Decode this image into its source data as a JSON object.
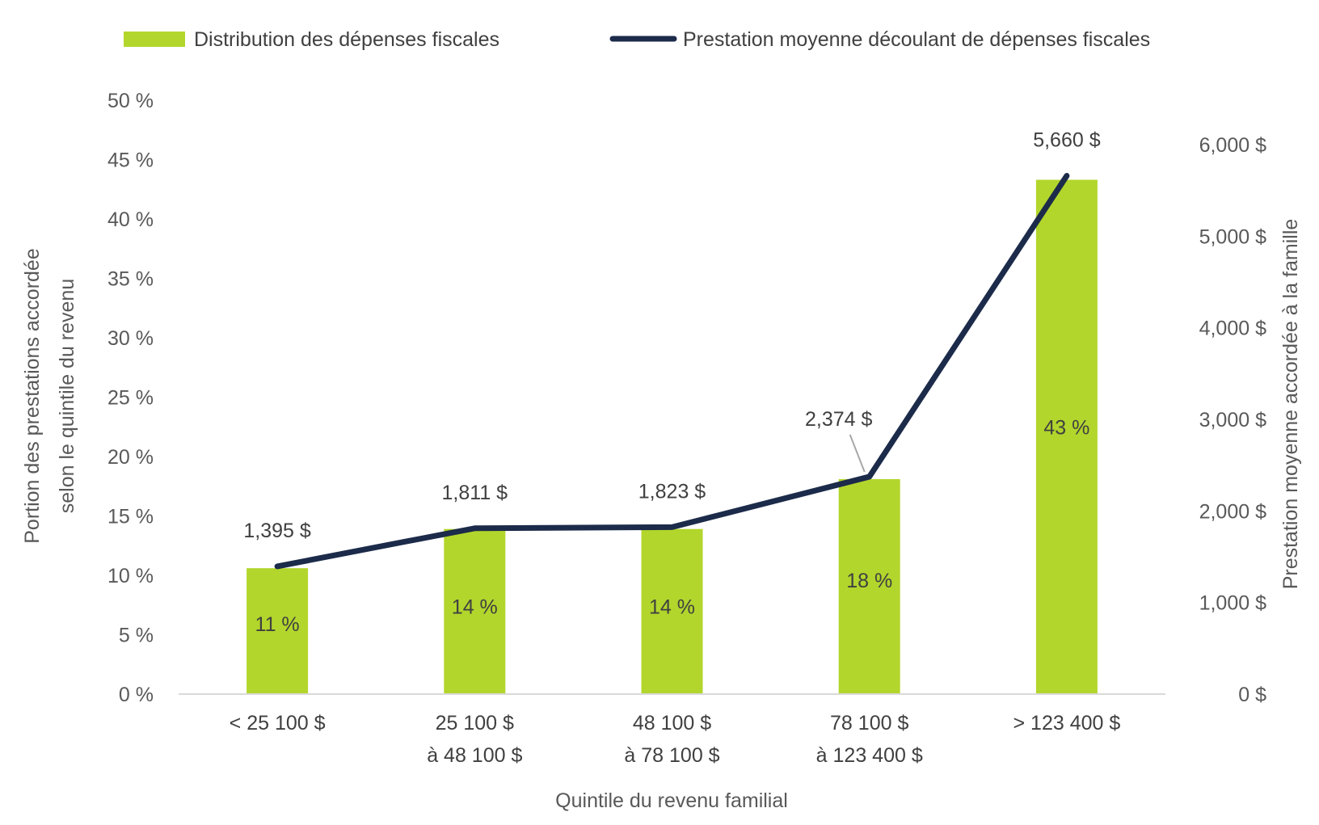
{
  "chart_data": {
    "type": "bar",
    "categories": [
      [
        "< 25 100 $"
      ],
      [
        "25 100 $",
        "à 48 100 $"
      ],
      [
        "48 100 $",
        "à 78 100 $"
      ],
      [
        "78 100 $",
        "à 123 400 $"
      ],
      [
        "> 123 400 $"
      ]
    ],
    "xlabel": "Quintile du revenu familial",
    "ylabel_left": [
      "Portion des prestations accordée",
      "selon le quintile du revenu"
    ],
    "ylabel_right": "Prestation moyenne accordée à la famille",
    "left_axis": {
      "min": 0,
      "max": 50,
      "step": 5,
      "tick_labels": [
        "0 %",
        "5 %",
        "10 %",
        "15 %",
        "20 %",
        "25 %",
        "30 %",
        "35 %",
        "40 %",
        "45 %",
        "50 %"
      ]
    },
    "right_axis": {
      "min": 0,
      "max": 6500,
      "step": 1000,
      "tick_labels": [
        "0 $",
        "1,000 $",
        "2,000 $",
        "3,000 $",
        "4,000 $",
        "5,000 $",
        "6,000 $"
      ]
    },
    "series": [
      {
        "name": "Distribution des dépenses fiscales",
        "kind": "bar",
        "axis": "left",
        "color": "#b2d62c",
        "values": [
          10.6,
          13.9,
          13.9,
          18.1,
          43.3
        ],
        "data_labels": [
          "11 %",
          "14 %",
          "14 %",
          "18 %",
          "43 %"
        ]
      },
      {
        "name": "Prestation moyenne découlant de dépenses fiscales",
        "kind": "line",
        "axis": "right",
        "color": "#1c2b4a",
        "values": [
          1395,
          1811,
          1823,
          2374,
          5660
        ],
        "data_labels": [
          "1,395 $",
          "1,811 $",
          "1,823 $",
          "2,374 $",
          "5,660 $"
        ]
      }
    ],
    "legend_position": "top",
    "grid": false
  }
}
